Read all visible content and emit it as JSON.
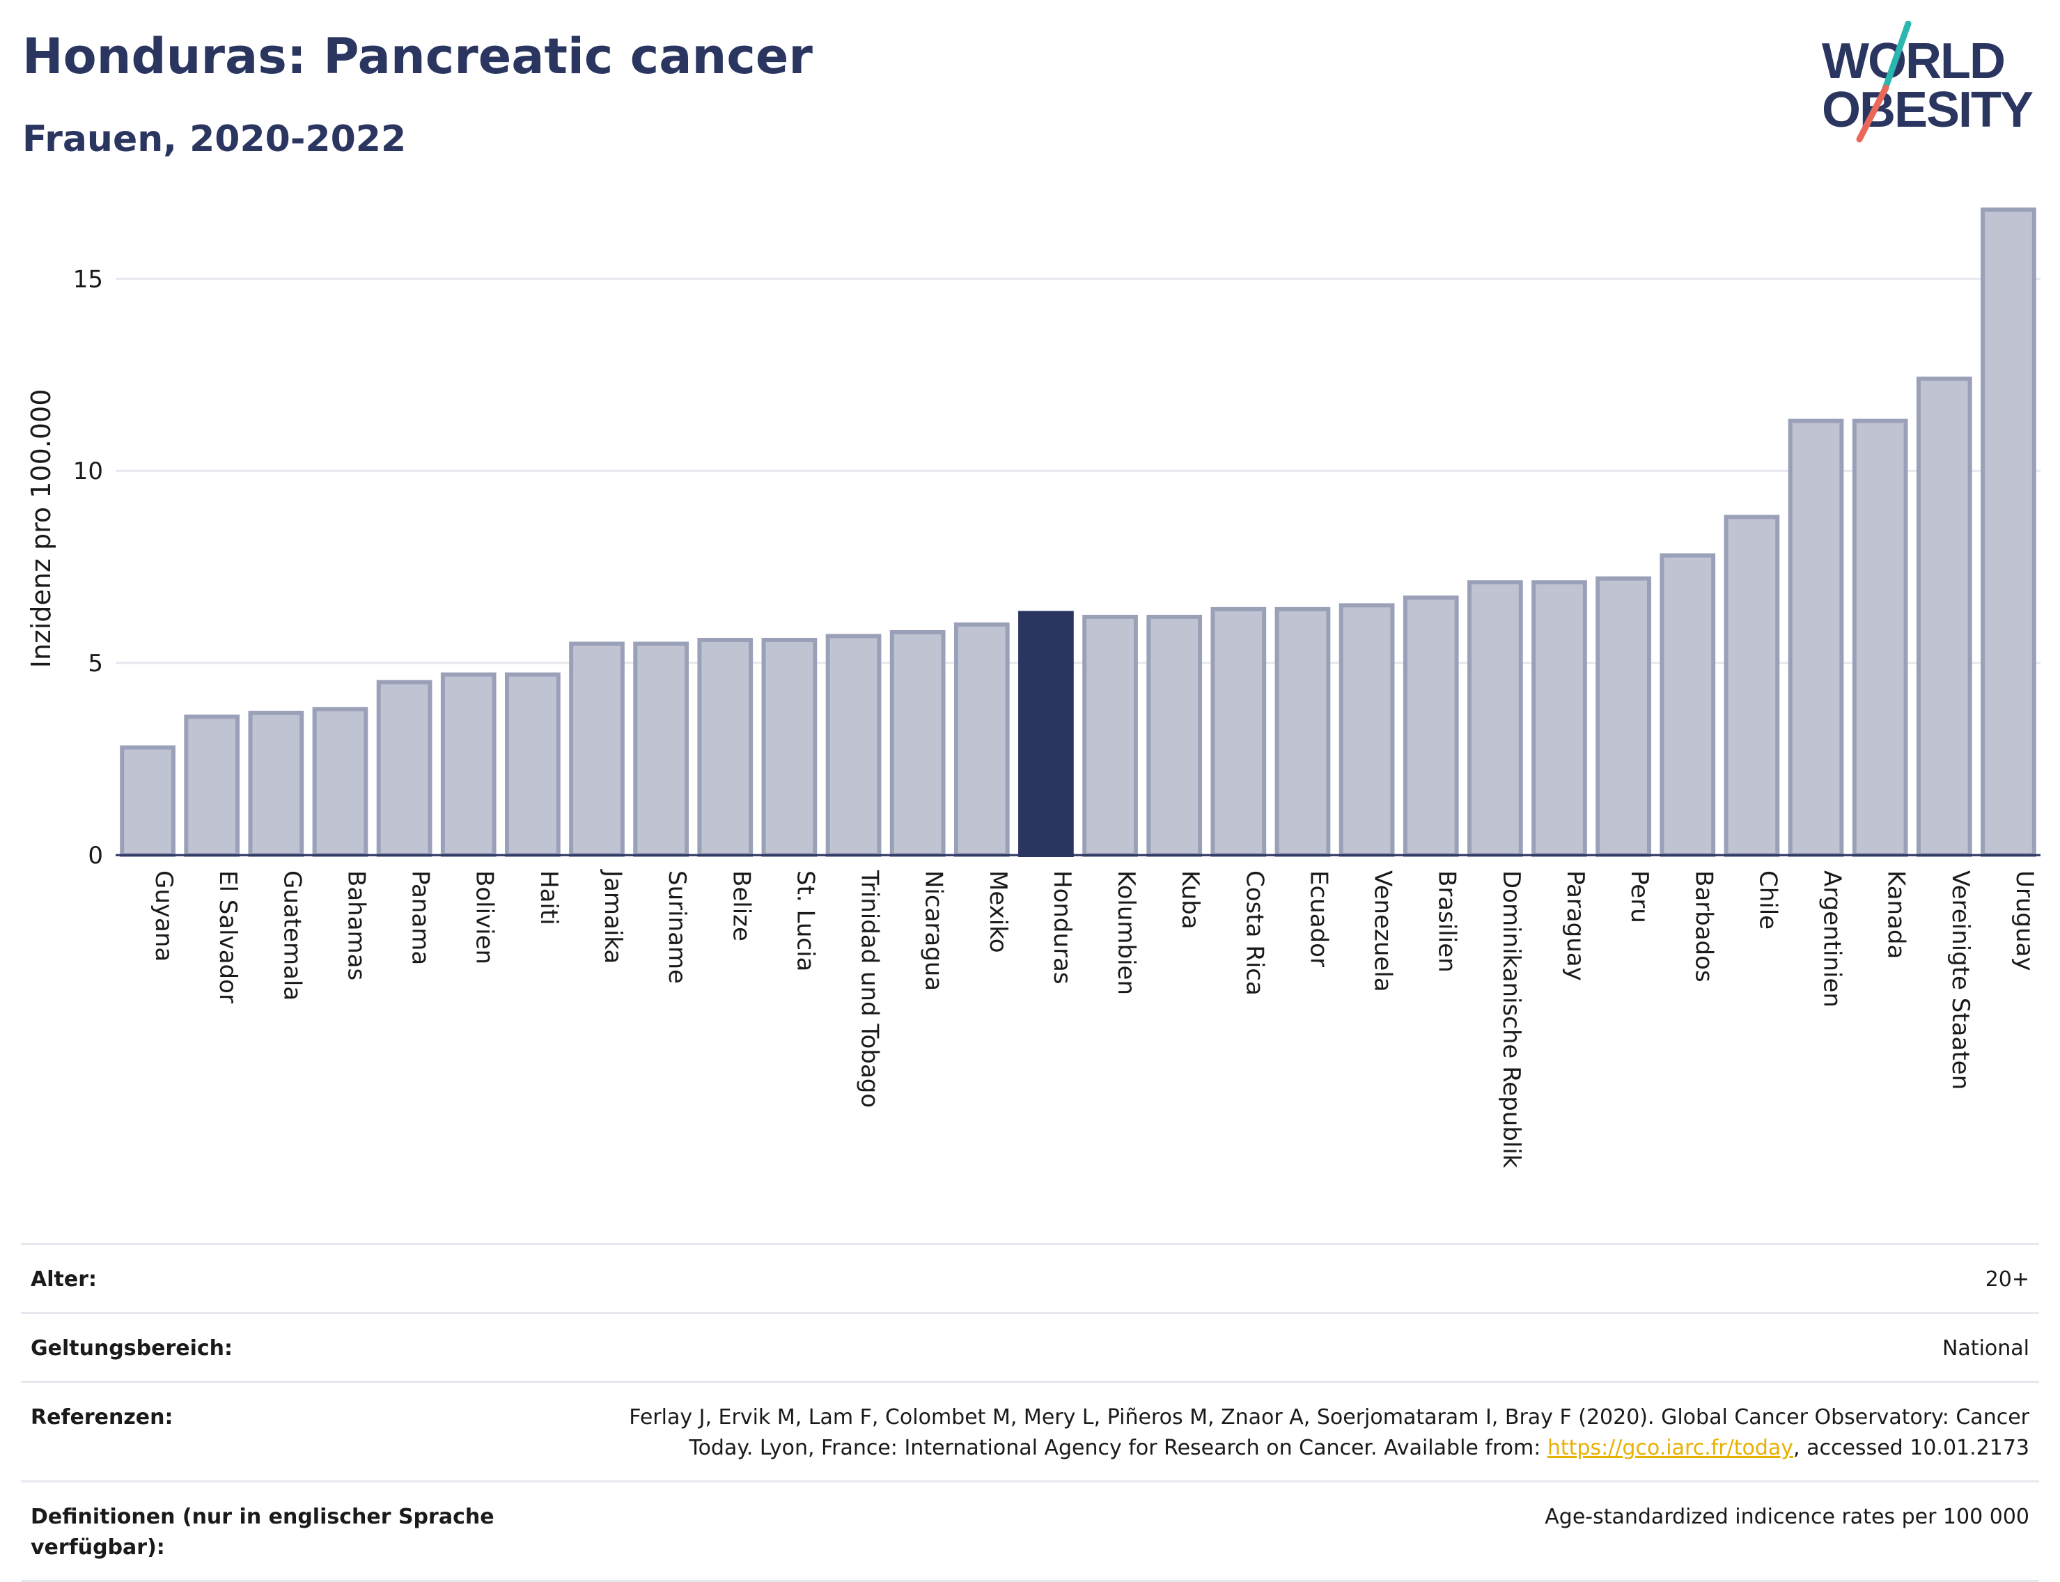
{
  "header": {
    "title": "Honduras: Pancreatic cancer",
    "subtitle": "Frauen, 2020-2022"
  },
  "logo": {
    "line1": "WORLD",
    "line2": "OBESITY",
    "colors": {
      "text": "#2a3560",
      "slash_teal": "#2bb6b0",
      "slash_red": "#e8695a"
    }
  },
  "chart_data": {
    "type": "bar",
    "ylabel": "Inzidenz pro 100.000",
    "ylim": [
      0,
      17
    ],
    "yticks": [
      0,
      5,
      10,
      15
    ],
    "grid": true,
    "highlight": "Honduras",
    "colors": {
      "bar": "#c0c4d2",
      "bar_border": "#9aa0b8",
      "highlight": "#2a3560",
      "grid": "#e6e8ef",
      "axis": "#2a3560"
    },
    "categories": [
      "Guyana",
      "El Salvador",
      "Guatemala",
      "Bahamas",
      "Panama",
      "Bolivien",
      "Haiti",
      "Jamaika",
      "Suriname",
      "Belize",
      "St. Lucia",
      "Trinidad und Tobago",
      "Nicaragua",
      "Mexiko",
      "Honduras",
      "Kolumbien",
      "Kuba",
      "Costa Rica",
      "Ecuador",
      "Venezuela",
      "Brasilien",
      "Dominikanische Republik",
      "Paraguay",
      "Peru",
      "Barbados",
      "Chile",
      "Argentinien",
      "Kanada",
      "Vereinigte Staaten",
      "Uruguay"
    ],
    "values": [
      2.8,
      3.6,
      3.7,
      3.8,
      4.5,
      4.7,
      4.7,
      5.5,
      5.5,
      5.6,
      5.6,
      5.7,
      5.8,
      6.0,
      6.3,
      6.2,
      6.2,
      6.4,
      6.4,
      6.5,
      6.7,
      7.1,
      7.1,
      7.2,
      7.8,
      8.8,
      11.3,
      11.3,
      12.4,
      16.8
    ]
  },
  "info": {
    "rows": [
      {
        "key": "Alter:",
        "value": "20+"
      },
      {
        "key": "Geltungsbereich:",
        "value": "National"
      }
    ],
    "references": {
      "key": "Referenzen:",
      "line1": "Ferlay J, Ervik M, Lam F, Colombet M, Mery L, Piñeros M, Znaor A, Soerjomataram I, Bray F (2020). Global Cancer Observatory: Cancer",
      "line2_before": "Today. Lyon, France: International Agency for Research on Cancer. Available from: ",
      "link": "https://gco.iarc.fr/today",
      "line2_after": ", accessed 10.01.2173"
    },
    "definitions": {
      "key": "Definitionen (nur in englischer Sprache verfügbar):",
      "value": "Age-standardized indicence rates per 100 000"
    }
  }
}
